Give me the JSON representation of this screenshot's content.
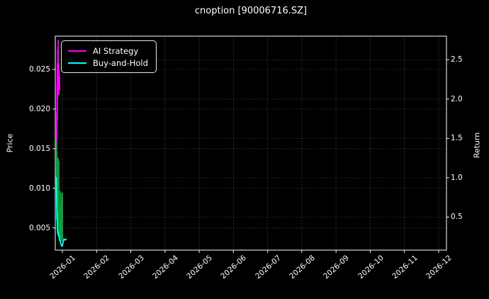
{
  "title": "cnoption [90006716.SZ]",
  "colors": {
    "background": "#000000",
    "foreground": "#ffffff",
    "grid_vertical": "#555555",
    "grid_horizontal": "#9a9a9a",
    "ai_strategy": "#ff00ff",
    "buy_and_hold": "#00ffff",
    "price_line": "#00a53c"
  },
  "legend": {
    "items": [
      {
        "label": "AI Strategy",
        "color": "#ff00ff"
      },
      {
        "label": "Buy-and-Hold",
        "color": "#00ffff"
      }
    ]
  },
  "chart_data": {
    "type": "line",
    "title": "cnoption [90006716.SZ]",
    "grid": true,
    "legend_position": "upper left",
    "x_axis": {
      "tick_labels": [
        "2026-01",
        "2026-02",
        "2026-03",
        "2026-04",
        "2026-05",
        "2026-06",
        "2026-07",
        "2026-08",
        "2026-09",
        "2026-10",
        "2026-11",
        "2026-12"
      ],
      "tick_positions": [
        0.0181,
        0.1056,
        0.193,
        0.2804,
        0.3679,
        0.4553,
        0.5428,
        0.6302,
        0.7177,
        0.8051,
        0.8925,
        0.98
      ]
    },
    "y_left": {
      "label": "Price",
      "tick_labels": [
        "0.005",
        "0.010",
        "0.015",
        "0.020",
        "0.025"
      ],
      "tick_values": [
        0.005,
        0.01,
        0.015,
        0.02,
        0.025
      ],
      "lim": [
        0.0022,
        0.0292
      ]
    },
    "y_right": {
      "label": "Return",
      "tick_labels": [
        "0.5",
        "1.0",
        "1.5",
        "2.0",
        "2.5"
      ],
      "tick_values": [
        0.5,
        1.0,
        1.5,
        2.0,
        2.5
      ],
      "lim": [
        0.08,
        2.8
      ]
    },
    "series": [
      {
        "name": "AI Strategy",
        "axis": "right",
        "color": "#ff00ff",
        "x": [
          0.0029,
          0.0033,
          0.0036,
          0.004,
          0.0045,
          0.0051,
          0.0054,
          0.006,
          0.0065,
          0.0072,
          0.0076,
          0.0082,
          0.0087,
          0.0092,
          0.0098,
          0.0103,
          0.0109,
          0.0114
        ],
        "y": [
          1.0,
          1.1,
          1.82,
          1.37,
          2.18,
          1.73,
          2.45,
          2.0,
          2.63,
          2.13,
          2.75,
          2.22,
          2.45,
          2.06,
          2.36,
          2.11,
          2.29,
          2.12
        ]
      },
      {
        "name": "Price",
        "axis": "left",
        "color": "#00a53c",
        "x": [
          0.0031,
          0.0036,
          0.0042,
          0.0047,
          0.0053,
          0.0058,
          0.0063,
          0.0069,
          0.0074,
          0.008,
          0.0085,
          0.0091,
          0.0096,
          0.0101,
          0.0107,
          0.0112,
          0.0118,
          0.0127,
          0.0132,
          0.0138,
          0.0145,
          0.015,
          0.0156,
          0.0163,
          0.0172,
          0.0181,
          0.0187,
          0.0196
        ],
        "y": [
          0.016,
          0.0114,
          0.0145,
          0.0069,
          0.0128,
          0.0053,
          0.0114,
          0.0043,
          0.0138,
          0.0041,
          0.0105,
          0.0134,
          0.0038,
          0.0069,
          0.0034,
          0.0074,
          0.0035,
          0.0052,
          0.0096,
          0.0039,
          0.0094,
          0.0037,
          0.0056,
          0.0034,
          0.0043,
          0.0094,
          0.0034,
          0.0037
        ]
      },
      {
        "name": "Buy-and-Hold",
        "axis": "right",
        "color": "#00ffff",
        "x": [
          0.0029,
          0.0036,
          0.0042,
          0.0047,
          0.0054,
          0.0063,
          0.0072,
          0.0082,
          0.0091,
          0.0109,
          0.0127,
          0.0145,
          0.0163,
          0.0181,
          0.0199,
          0.0217,
          0.0236,
          0.0254,
          0.0281
        ],
        "y": [
          1.0,
          0.65,
          0.47,
          0.56,
          0.36,
          0.29,
          0.32,
          0.26,
          0.28,
          0.23,
          0.2,
          0.16,
          0.13,
          0.13,
          0.18,
          0.21,
          0.22,
          0.21,
          0.22
        ]
      }
    ]
  }
}
